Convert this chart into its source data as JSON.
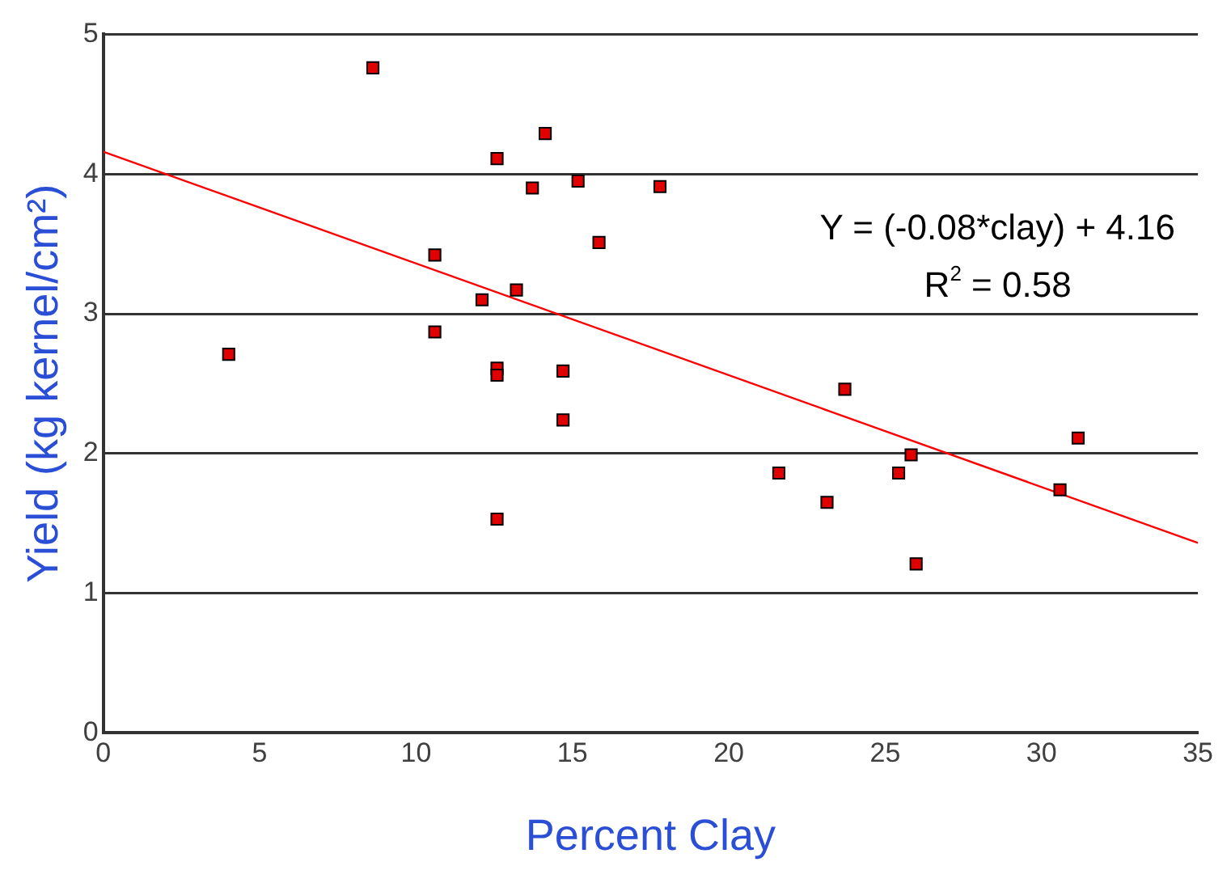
{
  "chart_data": {
    "type": "scatter",
    "xlabel": "Percent Clay",
    "ylabel": "Yield (kg kernel/cm²)",
    "xlim": [
      0,
      35
    ],
    "xticks": [
      0,
      5,
      10,
      15,
      20,
      25,
      30,
      35
    ],
    "ylim": [
      0,
      5
    ],
    "yticks": [
      0,
      1,
      2,
      3,
      4,
      5
    ],
    "grid": "y",
    "legend": false,
    "annotations": [
      "Y = (-0.08*clay) + 4.16",
      "R$^{2}$ = 0.58"
    ],
    "series": [
      {
        "marker": "square",
        "color": "#e00000",
        "x": [
          8.62,
          14.13,
          12.59,
          15.18,
          13.72,
          17.8,
          15.85,
          10.6,
          13.21,
          12.11,
          10.6,
          4.01,
          12.59,
          12.59,
          14.7,
          14.7,
          12.59,
          21.6,
          23.14,
          23.71,
          25.43,
          25.83,
          25.99,
          30.59,
          31.17
        ],
        "values": [
          4.76,
          4.29,
          4.11,
          3.95,
          3.9,
          3.91,
          3.51,
          3.42,
          3.17,
          3.1,
          2.87,
          2.71,
          2.61,
          2.56,
          2.59,
          2.24,
          1.53,
          1.86,
          1.65,
          2.46,
          1.86,
          1.99,
          1.21,
          1.74,
          2.11
        ]
      },
      {
        "type": "line",
        "marker": "none",
        "color": "#ff0000",
        "x": [
          0,
          35
        ],
        "values": [
          4.16,
          1.36
        ]
      }
    ]
  }
}
